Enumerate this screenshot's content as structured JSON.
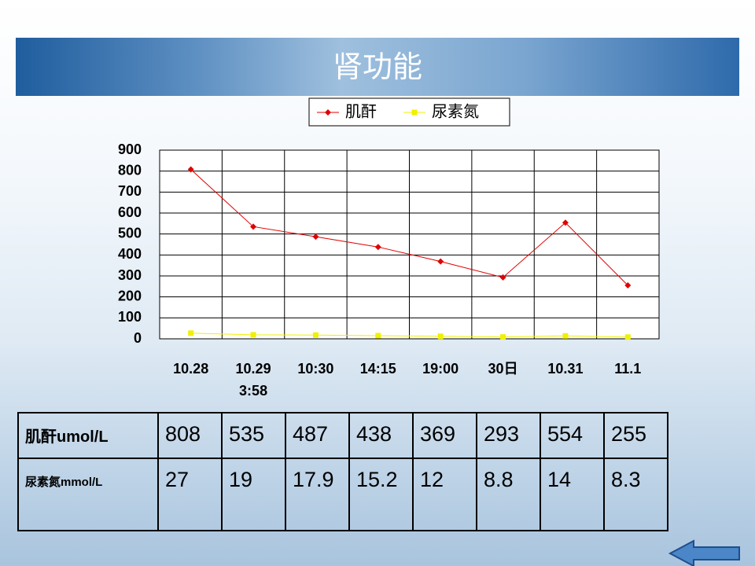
{
  "header": {
    "title": "肾功能"
  },
  "chart_data": {
    "type": "line",
    "categories": [
      "10.28",
      "10.29\n3:58",
      "10:30",
      "14:15",
      "19:00",
      "30日",
      "10.31",
      "11.1"
    ],
    "series": [
      {
        "name": "肌酐",
        "color": "#e00000",
        "marker": "diamond",
        "values": [
          808,
          535,
          487,
          438,
          369,
          293,
          554,
          255
        ]
      },
      {
        "name": "尿素氮",
        "color": "#f0f000",
        "marker": "square",
        "values": [
          27,
          19,
          17.9,
          15.2,
          12,
          8.8,
          14,
          8.3
        ]
      }
    ],
    "ylim": [
      0,
      900
    ],
    "yticks": [
      0,
      100,
      200,
      300,
      400,
      500,
      600,
      700,
      800,
      900
    ],
    "grid": true,
    "legend": "top"
  },
  "table": {
    "rows": [
      [
        "肌酐umol/L",
        "808",
        "535",
        "487",
        "438",
        "369",
        "293",
        "554",
        "255"
      ],
      [
        "尿素氮mmol/L",
        "27",
        "19",
        "17.9",
        "15.2",
        "12",
        "8.8",
        "14",
        "8.3"
      ]
    ]
  }
}
